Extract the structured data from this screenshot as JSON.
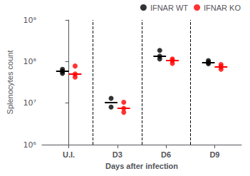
{
  "chart_data": {
    "type": "scatter",
    "title": "",
    "categories": [
      "U.I.",
      "D3",
      "D6",
      "D9"
    ],
    "ylabel": "Splenocytes count",
    "xlabel": "Days after infection",
    "log": "y",
    "ylim": [
      1000000,
      1000000000
    ],
    "yticks": [
      {
        "value": 1000000,
        "label": "10⁶"
      },
      {
        "value": 10000000,
        "label": "10⁷"
      },
      {
        "value": 100000000,
        "label": "10⁸"
      },
      {
        "value": 1000000000,
        "label": "10⁹"
      }
    ],
    "grid": false,
    "legend": "upper right",
    "series": [
      {
        "name": "IFNAR WT",
        "color": "#000000",
        "marker": "circle",
        "values": [
          [
            65000000,
            58000000,
            52000000
          ],
          [
            13000000,
            8000000
          ],
          [
            185000000,
            135000000,
            115000000
          ],
          [
            105000000,
            95000000,
            88000000
          ]
        ],
        "medians": [
          58000000,
          10500000,
          135000000,
          95000000
        ]
      },
      {
        "name": "IFNAR KO",
        "color": "#ff0000",
        "marker": "circle",
        "values": [
          [
            78000000,
            50000000,
            42000000
          ],
          [
            10500000,
            7500000,
            6000000
          ],
          [
            115000000,
            105000000,
            90000000
          ],
          [
            85000000,
            75000000,
            65000000
          ]
        ],
        "medians": [
          50000000,
          7500000,
          105000000,
          75000000
        ]
      }
    ]
  }
}
